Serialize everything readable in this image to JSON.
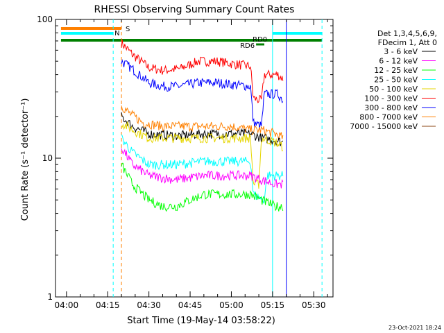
{
  "chart_data": {
    "type": "line",
    "title": "RHESSI Observing Summary Count Rates",
    "xlabel": "Start Time (19-May-14 03:58:22)",
    "ylabel": "Count Rate (s⁻¹ detector⁻¹)",
    "y_scale": "log",
    "ylim": [
      1,
      100
    ],
    "xlim": [
      "03:56",
      "05:37"
    ],
    "x_ticks": [
      "04:00",
      "04:15",
      "04:30",
      "04:45",
      "05:00",
      "05:15",
      "05:30"
    ],
    "y_ticks": [
      "1",
      "10",
      "100"
    ],
    "legend": {
      "placement": "right",
      "header": [
        "Det 1,3,4,5,6,9,",
        "FDecim 1, Att 0"
      ],
      "entries": [
        {
          "label": "3 - 6 keV",
          "color": "#000000"
        },
        {
          "label": "6 - 12 keV",
          "color": "#ff00ff"
        },
        {
          "label": "12 - 25 keV",
          "color": "#00ff00"
        },
        {
          "label": "25 - 50 keV",
          "color": "#00ffff"
        },
        {
          "label": "50 - 100 keV",
          "color": "#e6d600"
        },
        {
          "label": "100 - 300 keV",
          "color": "#ff0000"
        },
        {
          "label": "300 - 800 keV",
          "color": "#0000ff"
        },
        {
          "label": "800 - 7000 keV",
          "color": "#ff8000"
        },
        {
          "label": "7000 - 15000 keV",
          "color": "#8b4513"
        }
      ]
    },
    "series": [
      {
        "color": "#ff0000",
        "points": [
          [
            "04:20",
            68
          ],
          [
            "04:24",
            56
          ],
          [
            "04:30",
            45
          ],
          [
            "04:35",
            43
          ],
          [
            "04:41",
            44
          ],
          [
            "04:48",
            50
          ],
          [
            "04:55",
            50
          ],
          [
            "05:00",
            48
          ],
          [
            "05:07",
            46
          ],
          [
            "05:08",
            27
          ],
          [
            "05:11",
            26
          ],
          [
            "05:12",
            40
          ],
          [
            "05:17",
            40
          ],
          [
            "05:19",
            37
          ]
        ]
      },
      {
        "color": "#0000ff",
        "points": [
          [
            "04:20",
            50
          ],
          [
            "04:24",
            44
          ],
          [
            "04:30",
            35
          ],
          [
            "04:35",
            33
          ],
          [
            "04:41",
            33
          ],
          [
            "04:48",
            35
          ],
          [
            "04:55",
            35
          ],
          [
            "05:00",
            34
          ],
          [
            "05:07",
            33
          ],
          [
            "05:08",
            18
          ],
          [
            "05:11",
            17
          ],
          [
            "05:12",
            29
          ],
          [
            "05:17",
            29
          ],
          [
            "05:19",
            26
          ]
        ]
      },
      {
        "color": "#ff8000",
        "points": [
          [
            "04:20",
            24
          ],
          [
            "04:23",
            21
          ],
          [
            "04:28",
            18
          ],
          [
            "04:35",
            17
          ],
          [
            "04:50",
            17
          ],
          [
            "05:00",
            17
          ],
          [
            "05:07",
            16
          ],
          [
            "05:11",
            16
          ],
          [
            "05:16",
            15
          ],
          [
            "05:19",
            14
          ]
        ]
      },
      {
        "color": "#000000",
        "points": [
          [
            "04:20",
            20
          ],
          [
            "04:24",
            17
          ],
          [
            "04:30",
            15
          ],
          [
            "04:40",
            14.5
          ],
          [
            "04:50",
            15
          ],
          [
            "05:00",
            15
          ],
          [
            "05:07",
            15
          ],
          [
            "05:11",
            14
          ],
          [
            "05:16",
            13.5
          ],
          [
            "05:19",
            13
          ]
        ]
      },
      {
        "color": "#e6d600",
        "points": [
          [
            "04:20",
            18
          ],
          [
            "04:24",
            16
          ],
          [
            "04:30",
            14
          ],
          [
            "04:45",
            14
          ],
          [
            "05:00",
            14
          ],
          [
            "05:07",
            14
          ],
          [
            "05:08",
            6.5
          ],
          [
            "05:10",
            6.5
          ],
          [
            "05:11",
            14
          ],
          [
            "05:16",
            13
          ],
          [
            "05:19",
            12
          ]
        ]
      },
      {
        "color": "#00ffff",
        "points": [
          [
            "04:20",
            14
          ],
          [
            "04:24",
            11
          ],
          [
            "04:30",
            9
          ],
          [
            "04:40",
            9
          ],
          [
            "04:50",
            9.5
          ],
          [
            "05:00",
            9.5
          ],
          [
            "05:07",
            9.5
          ],
          [
            "05:08",
            5.5
          ],
          [
            "05:12",
            5
          ],
          [
            "05:13",
            7.5
          ],
          [
            "05:19",
            7.5
          ]
        ]
      },
      {
        "color": "#ff00ff",
        "points": [
          [
            "04:20",
            12
          ],
          [
            "04:24",
            9
          ],
          [
            "04:30",
            7.5
          ],
          [
            "04:40",
            7
          ],
          [
            "04:50",
            7.5
          ],
          [
            "05:00",
            7.5
          ],
          [
            "05:07",
            7.5
          ],
          [
            "05:11",
            7
          ],
          [
            "05:16",
            6.5
          ],
          [
            "05:19",
            6.5
          ]
        ]
      },
      {
        "color": "#00ff00",
        "points": [
          [
            "04:20",
            9
          ],
          [
            "04:24",
            6.5
          ],
          [
            "04:30",
            5
          ],
          [
            "04:35",
            4.5
          ],
          [
            "04:40",
            4.5
          ],
          [
            "04:45",
            5
          ],
          [
            "04:50",
            5.5
          ],
          [
            "04:55",
            5.5
          ],
          [
            "05:00",
            5.5
          ],
          [
            "05:07",
            5.5
          ],
          [
            "05:11",
            5
          ],
          [
            "05:16",
            4.5
          ],
          [
            "05:19",
            4.5
          ]
        ]
      }
    ],
    "annotations": {
      "flag_saa": {
        "label": "S",
        "start": "03:58",
        "end": "04:20",
        "color": "#ff8000"
      },
      "flag_night": {
        "label": "N",
        "start": "03:58",
        "end": "04:17",
        "color": "#00ffff"
      },
      "flag_night_2": {
        "start": "05:15",
        "end": "05:33",
        "color": "#00ffff"
      },
      "flag_rd0": {
        "label": "RD0",
        "start": "03:58",
        "end": "05:33",
        "color": "#008000"
      },
      "flag_rd6": {
        "label": "RD6",
        "start": "05:09",
        "end": "05:12",
        "color": "#008000"
      },
      "vlines": [
        {
          "time": "04:17",
          "color": "#00ffff",
          "style": "dashed"
        },
        {
          "time": "04:20",
          "color": "#ff8000",
          "style": "dashed"
        },
        {
          "time": "05:15",
          "color": "#00ffff",
          "style": "solid"
        },
        {
          "time": "05:33",
          "color": "#00ffff",
          "style": "dashed"
        },
        {
          "time": "05:20",
          "color": "#0000ff",
          "style": "solid"
        }
      ]
    },
    "footer": "23-Oct-2021 18:24"
  }
}
